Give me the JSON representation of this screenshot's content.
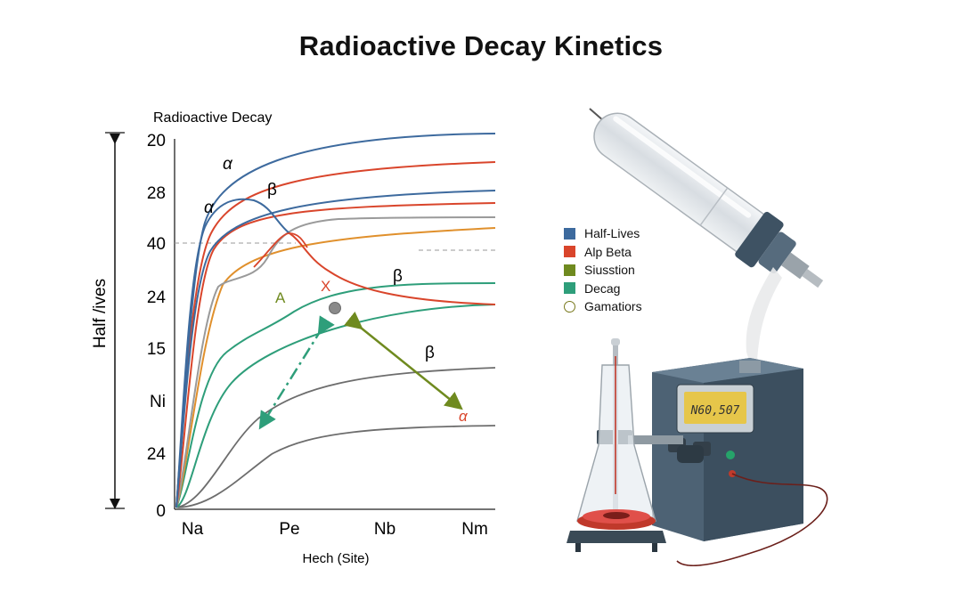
{
  "title": "Radioactive Decay Kinetics",
  "chart_data": {
    "type": "line",
    "title": "Radioactive Decay",
    "xlabel": "Hech (Site)",
    "ylabel": "Half /ives",
    "categories": [
      "Na",
      "Pe",
      "Nb",
      "Nm"
    ],
    "yticks": [
      "20",
      "28",
      "40",
      "24",
      "15",
      "Ni",
      "24",
      "0"
    ],
    "grid": false,
    "colors": {
      "blue": "#3d6a9e",
      "red": "#d9452b",
      "orange": "#e0902c",
      "teal": "#2e9e7a",
      "gray": "#6d6d6d",
      "lightgray": "#9a9a9a",
      "olive": "#6f8a1f"
    },
    "annotations": [
      {
        "text": "α",
        "color": "#111111"
      },
      {
        "text": "α",
        "color": "#111111"
      },
      {
        "text": "β",
        "color": "#111111"
      },
      {
        "text": "A",
        "color": "#6f8a1f"
      },
      {
        "text": "X",
        "color": "#d9452b"
      },
      {
        "text": "β",
        "color": "#111111"
      },
      {
        "text": "β",
        "color": "#111111"
      },
      {
        "text": "α",
        "color": "#d9452b"
      }
    ]
  },
  "legend": [
    {
      "label": "Half-Lives",
      "color": "#3d6a9e",
      "shape": "square"
    },
    {
      "label": "Alp Beta",
      "color": "#d9452b",
      "shape": "square"
    },
    {
      "label": "Siusstion",
      "color": "#6f8a1f",
      "shape": "square"
    },
    {
      "label": "Decag",
      "color": "#2e9e7a",
      "shape": "square"
    },
    {
      "label": "Gamatiors",
      "color": "#7a7a1f",
      "shape": "circle"
    }
  ],
  "meter_display": "N60,507"
}
